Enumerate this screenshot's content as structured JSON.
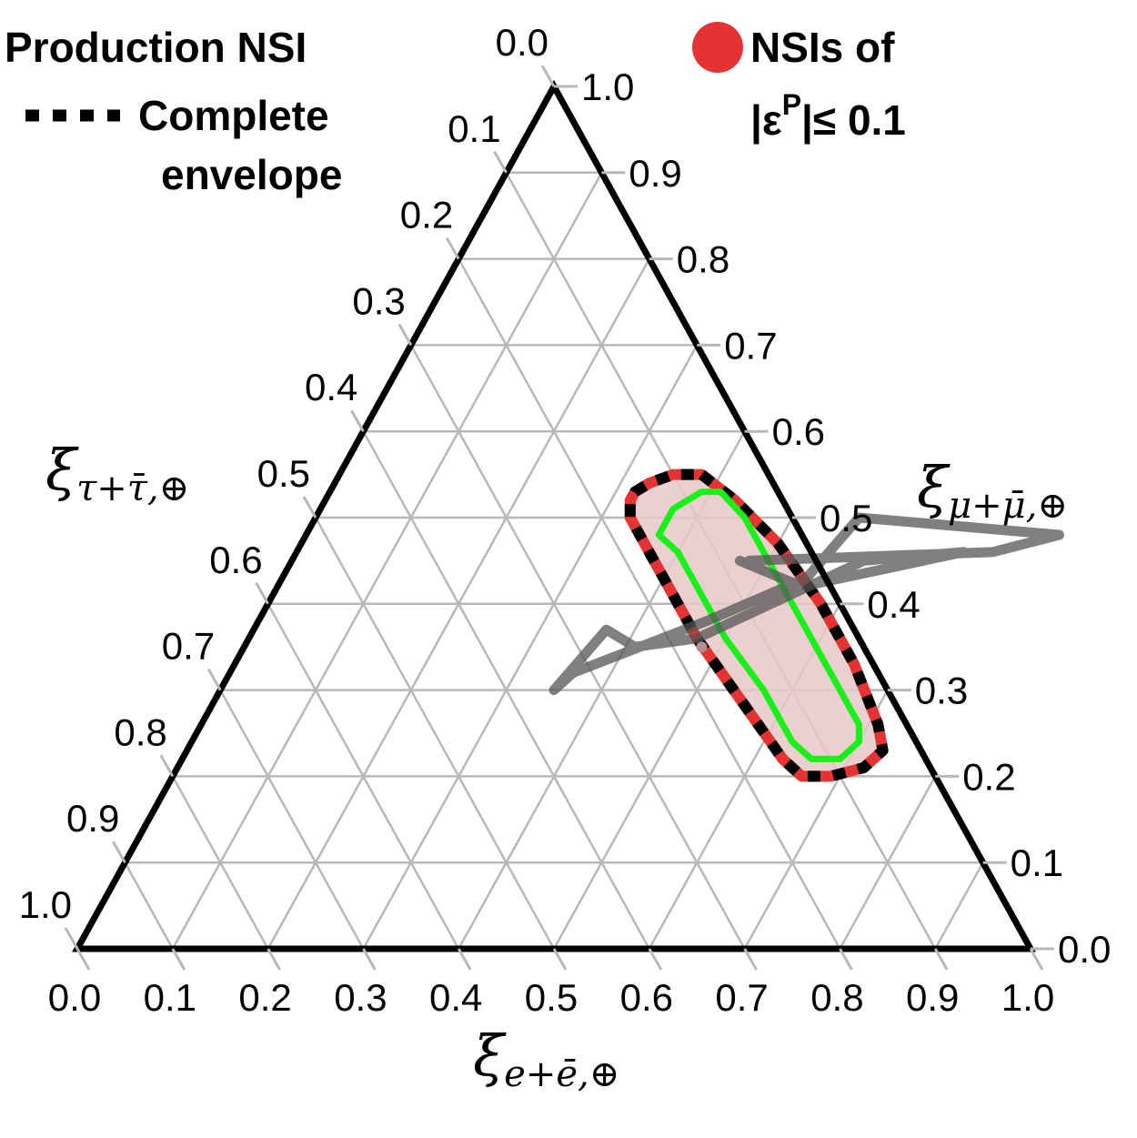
{
  "chart_data": {
    "type": "ternary",
    "title": "",
    "axes": {
      "bottom": {
        "label_main": "ξ",
        "label_sub": "e+ē,⊕",
        "ticks": [
          "0.0",
          "0.1",
          "0.2",
          "0.3",
          "0.4",
          "0.5",
          "0.6",
          "0.7",
          "0.8",
          "0.9",
          "1.0"
        ]
      },
      "right": {
        "label_main": "ξ",
        "label_sub": "μ+μ̄,⊕",
        "ticks": [
          "0.0",
          "0.1",
          "0.2",
          "0.3",
          "0.4",
          "0.5",
          "0.6",
          "0.7",
          "0.8",
          "0.9",
          "1.0"
        ]
      },
      "left": {
        "label_main": "ξ",
        "label_sub": "τ+τ̄,⊕",
        "ticks": [
          "0.0",
          "0.1",
          "0.2",
          "0.3",
          "0.4",
          "0.5",
          "0.6",
          "0.7",
          "0.8",
          "0.9",
          "1.0"
        ]
      },
      "range": [
        0,
        1
      ],
      "grid": true,
      "grid_step": 0.1
    },
    "legend": {
      "entries": [
        {
          "line1": "Production NSI",
          "line2": "",
          "line3": "",
          "style": "none"
        },
        {
          "line1": "Complete",
          "line2": "envelope",
          "line3": "",
          "style": "dashed-black"
        },
        {
          "line1": "NSIs of",
          "line2": "|ε",
          "line2_sup": "P",
          "line3": "|≤ 0.1",
          "style": "red-dot"
        }
      ],
      "placement": "top"
    },
    "colors": {
      "envelope_fill": "#e8c8c8",
      "envelope_edge": "#e33333",
      "dashed": "#000000",
      "inner_contour": "#19f019",
      "gray_contour": "#555555",
      "grid": "#b8b8b8"
    },
    "series": [
      {
        "style": "envelope",
        "points": [
          [
            0.38,
            0.55,
            0.07
          ],
          [
            0.43,
            0.52,
            0.05
          ],
          [
            0.5,
            0.47,
            0.03
          ],
          [
            0.58,
            0.4,
            0.02
          ],
          [
            0.65,
            0.33,
            0.02
          ],
          [
            0.71,
            0.26,
            0.03
          ],
          [
            0.73,
            0.23,
            0.04
          ],
          [
            0.72,
            0.21,
            0.07
          ],
          [
            0.69,
            0.2,
            0.11
          ],
          [
            0.66,
            0.2,
            0.14
          ],
          [
            0.63,
            0.22,
            0.15
          ],
          [
            0.55,
            0.29,
            0.16
          ],
          [
            0.47,
            0.36,
            0.17
          ],
          [
            0.41,
            0.42,
            0.17
          ],
          [
            0.38,
            0.45,
            0.17
          ],
          [
            0.35,
            0.48,
            0.17
          ],
          [
            0.33,
            0.5,
            0.17
          ],
          [
            0.32,
            0.52,
            0.16
          ],
          [
            0.32,
            0.53,
            0.15
          ],
          [
            0.33,
            0.54,
            0.13
          ],
          [
            0.35,
            0.55,
            0.1
          ]
        ]
      },
      {
        "style": "inner",
        "points": [
          [
            0.41,
            0.53,
            0.06
          ],
          [
            0.45,
            0.5,
            0.05
          ],
          [
            0.51,
            0.44,
            0.05
          ],
          [
            0.58,
            0.37,
            0.05
          ],
          [
            0.64,
            0.31,
            0.05
          ],
          [
            0.69,
            0.26,
            0.05
          ],
          [
            0.7,
            0.24,
            0.06
          ],
          [
            0.69,
            0.22,
            0.09
          ],
          [
            0.66,
            0.22,
            0.12
          ],
          [
            0.63,
            0.24,
            0.13
          ],
          [
            0.57,
            0.3,
            0.13
          ],
          [
            0.5,
            0.36,
            0.14
          ],
          [
            0.44,
            0.42,
            0.14
          ],
          [
            0.4,
            0.46,
            0.14
          ],
          [
            0.37,
            0.48,
            0.15
          ],
          [
            0.37,
            0.51,
            0.12
          ],
          [
            0.38,
            0.52,
            0.1
          ],
          [
            0.39,
            0.53,
            0.08
          ]
        ]
      },
      {
        "style": "gray",
        "points": [
          [
            0.47,
            0.45,
            0.08
          ],
          [
            0.55,
            0.42,
            0.03
          ],
          [
            0.7,
            0.46,
            -0.16
          ],
          [
            0.6,
            0.45,
            -0.05
          ],
          [
            0.47,
            0.36,
            0.17
          ],
          [
            0.41,
            0.35,
            0.24
          ],
          [
            0.37,
            0.37,
            0.26
          ],
          [
            0.35,
            0.3,
            0.35
          ],
          [
            0.36,
            0.32,
            0.32
          ],
          [
            0.47,
            0.38,
            0.15
          ],
          [
            0.55,
            0.43,
            0.02
          ],
          [
            0.57,
            0.5,
            -0.07
          ],
          [
            0.79,
            0.48,
            -0.27
          ],
          [
            0.73,
            0.46,
            -0.19
          ],
          [
            0.48,
            0.45,
            0.07
          ]
        ]
      },
      {
        "style": "best-fit",
        "points": [
          [
            0.48,
            0.35,
            0.17
          ]
        ]
      }
    ]
  }
}
